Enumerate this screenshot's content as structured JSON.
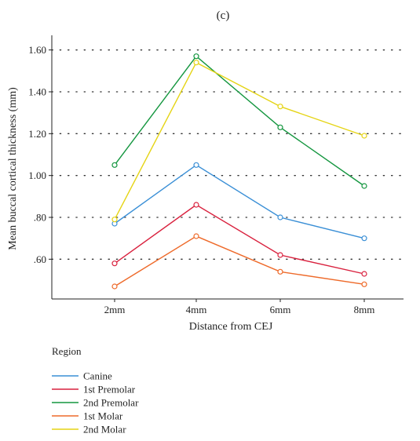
{
  "chart_data": {
    "type": "line",
    "title": "(c)",
    "xlabel": "Distance from CEJ",
    "ylabel": "Mean buccal cortical thickness (mm)",
    "categories": [
      "2mm",
      "4mm",
      "6mm",
      "8mm"
    ],
    "ylim": [
      0.41,
      1.67
    ],
    "yticks": [
      0.6,
      0.8,
      1.0,
      1.2,
      1.4,
      1.6
    ],
    "ytick_labels": [
      ".60",
      ".80",
      "1.00",
      "1.20",
      "1.40",
      "1.60"
    ],
    "grid": "horizontal dotted",
    "legend": {
      "title": "Region",
      "placement": "bottom-left"
    },
    "series": [
      {
        "name": "Canine",
        "color": "#3a8fd6",
        "values": [
          0.77,
          1.05,
          0.8,
          0.7
        ]
      },
      {
        "name": "1st Premolar",
        "color": "#d9213e",
        "values": [
          0.58,
          0.86,
          0.62,
          0.53
        ]
      },
      {
        "name": "2nd Premolar",
        "color": "#14963f",
        "values": [
          1.05,
          1.57,
          1.23,
          0.95
        ]
      },
      {
        "name": "1st Molar",
        "color": "#ee6a2a",
        "values": [
          0.47,
          0.71,
          0.54,
          0.48
        ]
      },
      {
        "name": "2nd Molar",
        "color": "#e5d414",
        "values": [
          0.79,
          1.54,
          1.33,
          1.19
        ]
      }
    ]
  }
}
